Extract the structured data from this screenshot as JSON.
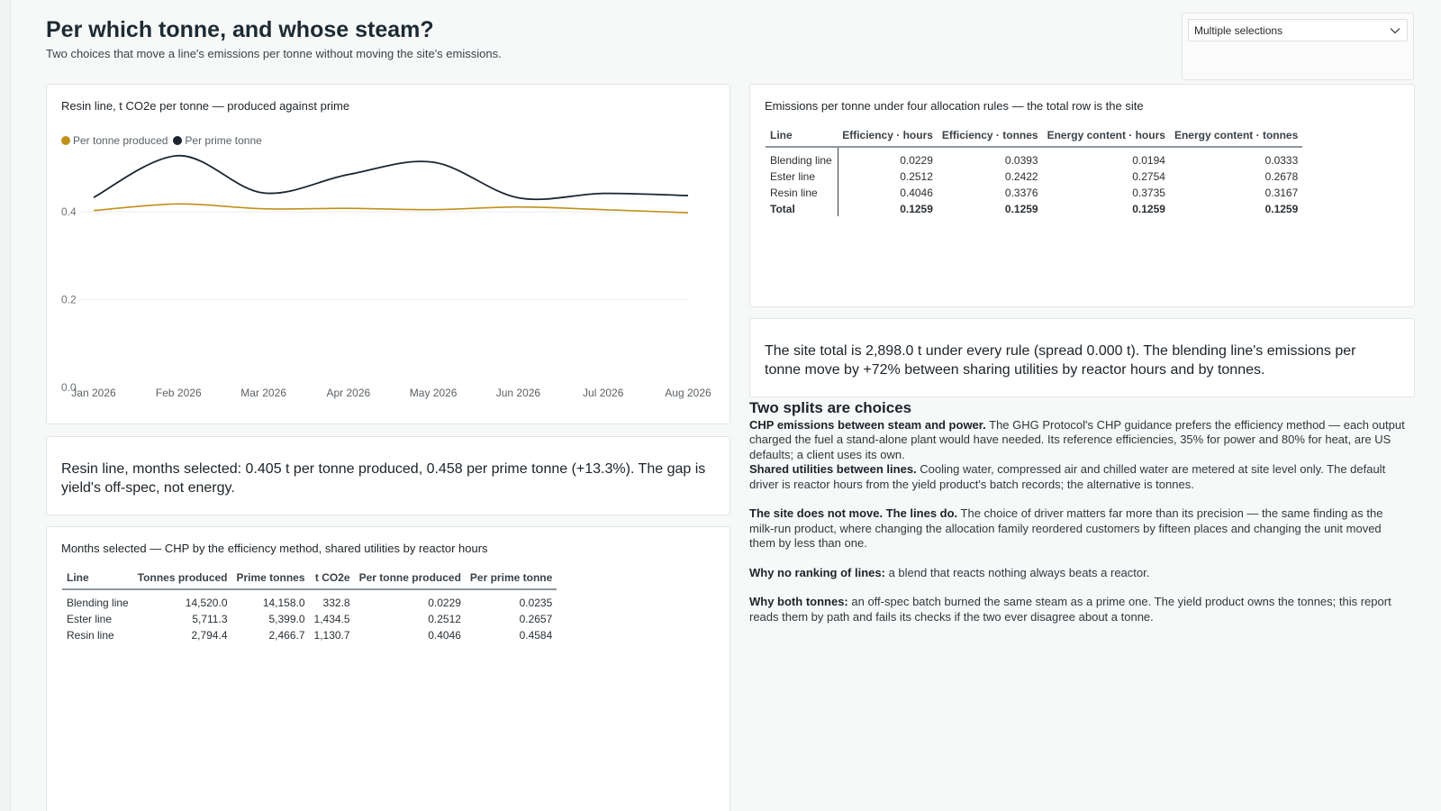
{
  "header": {
    "title": "Per which tonne, and whose steam?",
    "subtitle": "Two choices that move a line's emissions per tonne without moving the site's emissions."
  },
  "slicer": {
    "value": "Multiple selections",
    "icon": "chevron-down-icon"
  },
  "colors": {
    "produced": "#c0901a",
    "prime": "#1a2530",
    "accent_text": "#1c2a33"
  },
  "chart": {
    "title": "Resin line, t CO2e per tonne — produced against prime",
    "legend": [
      "Per tonne produced",
      "Per prime tonne"
    ]
  },
  "chart_data": {
    "type": "line",
    "title": "Resin line, t CO2e per tonne — produced against prime",
    "categories": [
      "Jan 2026",
      "Feb 2026",
      "Mar 2026",
      "Apr 2026",
      "May 2026",
      "Jun 2026",
      "Jul 2026",
      "Aug 2026"
    ],
    "series": [
      {
        "name": "Per tonne produced",
        "color": "#c0901a",
        "values": [
          0.403,
          0.418,
          0.407,
          0.408,
          0.405,
          0.411,
          0.405,
          0.398
        ]
      },
      {
        "name": "Per prime tonne",
        "color": "#1a2530",
        "values": [
          0.433,
          0.528,
          0.443,
          0.485,
          0.513,
          0.432,
          0.442,
          0.437
        ]
      }
    ],
    "yticks": [
      0.0,
      0.2,
      0.4
    ],
    "ylim": [
      0,
      0.55
    ],
    "grid": true,
    "legend_position": "top-left"
  },
  "callout_left": "Resin line, months selected: 0.405 t per tonne produced, 0.458 per prime tonne (+13.3%). The gap is yield's off-spec, not energy.",
  "months_table": {
    "title": "Months selected — CHP by the efficiency method, shared utilities by reactor hours",
    "headers": [
      "Line",
      "Tonnes produced",
      "Prime tonnes",
      "t CO2e",
      "Per tonne produced",
      "Per prime tonne"
    ],
    "rows": [
      [
        "Blending line",
        "14,520.0",
        "14,158.0",
        "332.8",
        "0.0229",
        "0.0235"
      ],
      [
        "Ester line",
        "5,711.3",
        "5,399.0",
        "1,434.5",
        "0.2512",
        "0.2657"
      ],
      [
        "Resin line",
        "2,794.4",
        "2,466.7",
        "1,130.7",
        "0.4046",
        "0.4584"
      ]
    ]
  },
  "alloc_table": {
    "title": "Emissions per tonne under four allocation rules — the total row is the site",
    "headers": [
      "Line",
      "Efficiency · hours",
      "Efficiency · tonnes",
      "Energy content · hours",
      "Energy content · tonnes"
    ],
    "rows": [
      [
        "Blending line",
        "0.0229",
        "0.0393",
        "0.0194",
        "0.0333"
      ],
      [
        "Ester line",
        "0.2512",
        "0.2422",
        "0.2754",
        "0.2678"
      ],
      [
        "Resin line",
        "0.4046",
        "0.3376",
        "0.3735",
        "0.3167"
      ]
    ],
    "total": [
      "Total",
      "0.1259",
      "0.1259",
      "0.1259",
      "0.1259"
    ]
  },
  "callout_right": "The site total is 2,898.0 t under every rule (spread 0.000 t). The blending line's emissions per tonne move by +72% between sharing utilities by reactor hours and by tonnes.",
  "notes": {
    "heading": "Two splits are choices",
    "p1_bold": "CHP emissions between steam and power.",
    "p1_text": " The GHG Protocol's CHP guidance prefers the efficiency method — each output charged the fuel a stand-alone plant would have needed. Its reference efficiencies, 35% for power and 80% for heat, are US defaults; a client uses its own.",
    "p2_bold": "Shared utilities between lines.",
    "p2_text": " Cooling water, compressed air and chilled water are metered at site level only. The default driver is reactor hours from the yield product's batch records; the alternative is tonnes.",
    "p3_bold": "The site does not move. The lines do.",
    "p3_text": " The choice of driver matters far more than its precision — the same finding as the milk-run product, where changing the allocation family reordered customers by fifteen places and changing the unit moved them by less than one.",
    "p4_bold": "Why no ranking of lines:",
    "p4_text": " a blend that reacts nothing always beats a reactor.",
    "p5_bold": "Why both tonnes:",
    "p5_text": " an off-spec batch burned the same steam as a prime one. The yield product owns the tonnes; this report reads them by path and fails its checks if the two ever disagree about a tonne."
  }
}
